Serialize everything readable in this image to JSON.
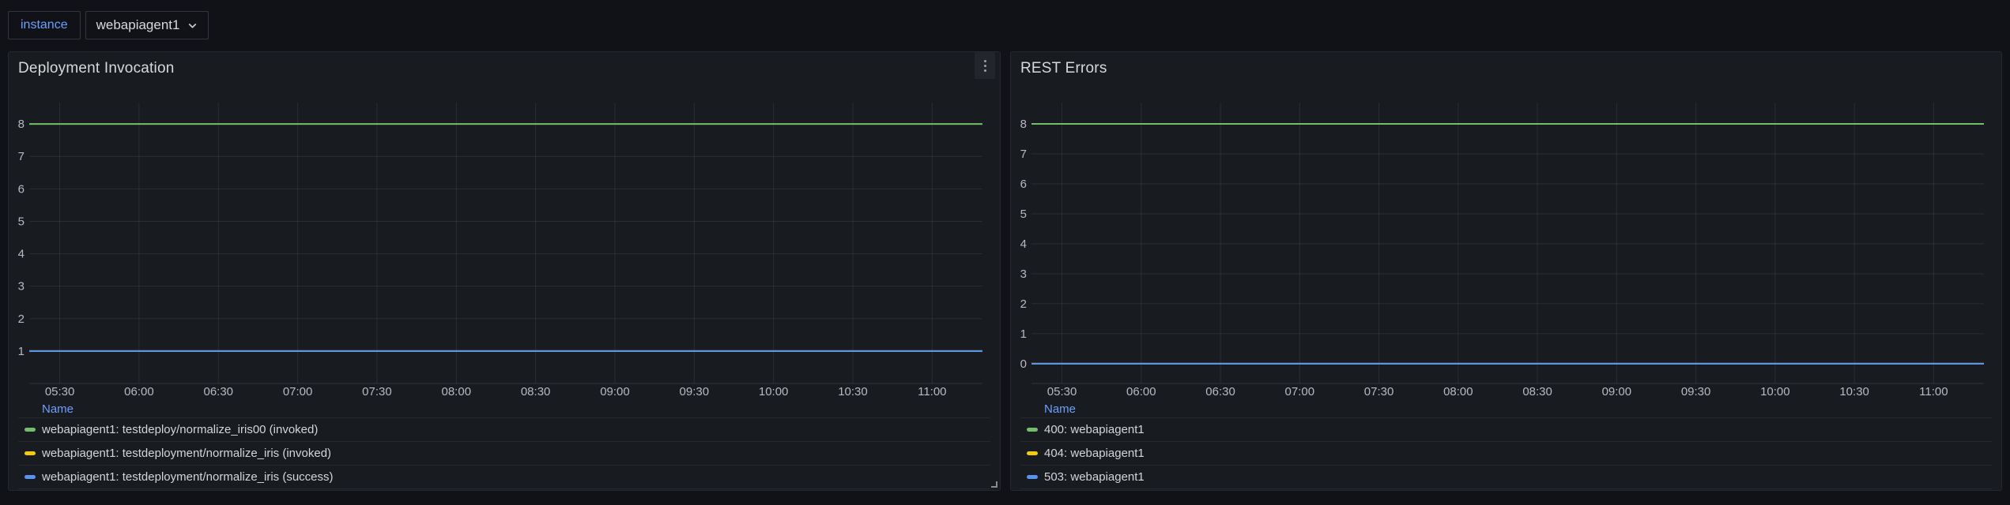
{
  "toolbar": {
    "variable": {
      "label": "instance",
      "value": "webapiagent1"
    }
  },
  "legend": {
    "header": "Name"
  },
  "panels": [
    {
      "title": "Deployment Invocation",
      "has_menu": true
    },
    {
      "title": "REST Errors",
      "has_menu": false
    }
  ],
  "colors": {
    "page_bg": "#111217",
    "panel_bg": "#181b1f",
    "accent_link": "#6e9fff",
    "grid": "rgba(204,204,220,0.10)",
    "axis_line": "rgba(204,204,220,0.14)",
    "axis_text": "#b7bac2",
    "series_green": "#73BF69",
    "series_yellow": "#F2CC0C",
    "series_blue": "#5794F2"
  },
  "chart_data": [
    {
      "type": "line",
      "title": "Deployment Invocation",
      "x": [
        "05:30",
        "06:00",
        "06:30",
        "07:00",
        "07:30",
        "08:00",
        "08:30",
        "09:00",
        "09:30",
        "10:00",
        "10:30",
        "11:00"
      ],
      "xlabel": "",
      "ylabel": "",
      "yticks": [
        1,
        2,
        3,
        4,
        5,
        6,
        7,
        8
      ],
      "ylim": [
        0,
        8.66
      ],
      "grid": true,
      "legend_position": "bottom-table",
      "series": [
        {
          "name": "webapiagent1: testdeploy/normalize_iris00 (invoked)",
          "color": "#73BF69",
          "value": 8,
          "visible": true
        },
        {
          "name": "webapiagent1: testdeployment/normalize_iris (invoked)",
          "color": "#F2CC0C",
          "value": 1,
          "visible": true,
          "note": "flat line overlapped by blue series drawn above it"
        },
        {
          "name": "webapiagent1: testdeployment/normalize_iris (success)",
          "color": "#5794F2",
          "value": 1,
          "visible": true
        }
      ]
    },
    {
      "type": "line",
      "title": "REST Errors",
      "x": [
        "05:30",
        "06:00",
        "06:30",
        "07:00",
        "07:30",
        "08:00",
        "08:30",
        "09:00",
        "09:30",
        "10:00",
        "10:30",
        "11:00"
      ],
      "xlabel": "",
      "ylabel": "",
      "yticks": [
        0,
        1,
        2,
        3,
        4,
        5,
        6,
        7,
        8
      ],
      "ylim": [
        -0.66,
        8.71
      ],
      "grid": true,
      "legend_position": "bottom-table",
      "series": [
        {
          "name": "400: webapiagent1",
          "color": "#73BF69",
          "value": 8,
          "visible": true
        },
        {
          "name": "404: webapiagent1",
          "color": "#F2CC0C",
          "value": 0,
          "visible": true,
          "note": "flat line overlapped by blue series drawn above it"
        },
        {
          "name": "503: webapiagent1",
          "color": "#5794F2",
          "value": 0,
          "visible": true
        }
      ]
    }
  ]
}
